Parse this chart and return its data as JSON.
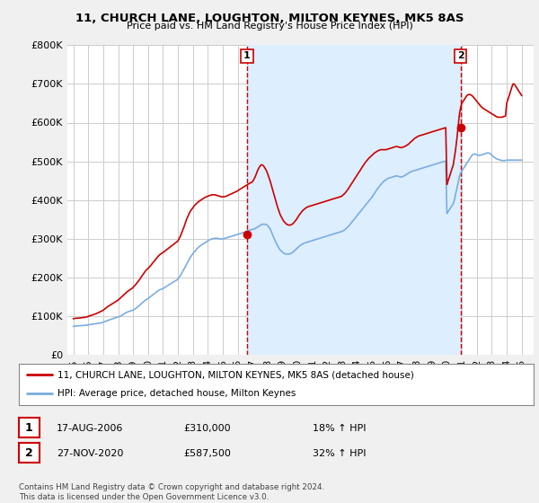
{
  "title": "11, CHURCH LANE, LOUGHTON, MILTON KEYNES, MK5 8AS",
  "subtitle": "Price paid vs. HM Land Registry's House Price Index (HPI)",
  "legend_line1": "11, CHURCH LANE, LOUGHTON, MILTON KEYNES, MK5 8AS (detached house)",
  "legend_line2": "HPI: Average price, detached house, Milton Keynes",
  "sale1_label": "1",
  "sale1_date": "17-AUG-2006",
  "sale1_price": "£310,000",
  "sale1_hpi": "18% ↑ HPI",
  "sale2_label": "2",
  "sale2_date": "27-NOV-2020",
  "sale2_price": "£587,500",
  "sale2_hpi": "32% ↑ HPI",
  "footer": "Contains HM Land Registry data © Crown copyright and database right 2024.\nThis data is licensed under the Open Government Licence v3.0.",
  "property_color": "#cc0000",
  "hpi_color": "#7aade0",
  "shade_color": "#ddeeff",
  "background_color": "#f0f0f0",
  "plot_bg_color": "#ffffff",
  "ylim": [
    0,
    800000
  ],
  "yticks": [
    0,
    100000,
    200000,
    300000,
    400000,
    500000,
    600000,
    700000,
    800000
  ],
  "sale1_year": 2006.62,
  "sale1_value": 310000,
  "sale2_year": 2020.92,
  "sale2_value": 587500,
  "hpi_years": [
    1995.0,
    1995.08,
    1995.17,
    1995.25,
    1995.33,
    1995.42,
    1995.5,
    1995.58,
    1995.67,
    1995.75,
    1995.83,
    1995.92,
    1996.0,
    1996.08,
    1996.17,
    1996.25,
    1996.33,
    1996.42,
    1996.5,
    1996.58,
    1996.67,
    1996.75,
    1996.83,
    1996.92,
    1997.0,
    1997.08,
    1997.17,
    1997.25,
    1997.33,
    1997.42,
    1997.5,
    1997.58,
    1997.67,
    1997.75,
    1997.83,
    1997.92,
    1998.0,
    1998.08,
    1998.17,
    1998.25,
    1998.33,
    1998.42,
    1998.5,
    1998.58,
    1998.67,
    1998.75,
    1998.83,
    1998.92,
    1999.0,
    1999.08,
    1999.17,
    1999.25,
    1999.33,
    1999.42,
    1999.5,
    1999.58,
    1999.67,
    1999.75,
    1999.83,
    1999.92,
    2000.0,
    2000.08,
    2000.17,
    2000.25,
    2000.33,
    2000.42,
    2000.5,
    2000.58,
    2000.67,
    2000.75,
    2000.83,
    2000.92,
    2001.0,
    2001.08,
    2001.17,
    2001.25,
    2001.33,
    2001.42,
    2001.5,
    2001.58,
    2001.67,
    2001.75,
    2001.83,
    2001.92,
    2002.0,
    2002.08,
    2002.17,
    2002.25,
    2002.33,
    2002.42,
    2002.5,
    2002.58,
    2002.67,
    2002.75,
    2002.83,
    2002.92,
    2003.0,
    2003.08,
    2003.17,
    2003.25,
    2003.33,
    2003.42,
    2003.5,
    2003.58,
    2003.67,
    2003.75,
    2003.83,
    2003.92,
    2004.0,
    2004.08,
    2004.17,
    2004.25,
    2004.33,
    2004.42,
    2004.5,
    2004.58,
    2004.67,
    2004.75,
    2004.83,
    2004.92,
    2005.0,
    2005.08,
    2005.17,
    2005.25,
    2005.33,
    2005.42,
    2005.5,
    2005.58,
    2005.67,
    2005.75,
    2005.83,
    2005.92,
    2006.0,
    2006.08,
    2006.17,
    2006.25,
    2006.33,
    2006.42,
    2006.5,
    2006.58,
    2006.67,
    2006.75,
    2006.83,
    2006.92,
    2007.0,
    2007.08,
    2007.17,
    2007.25,
    2007.33,
    2007.42,
    2007.5,
    2007.58,
    2007.67,
    2007.75,
    2007.83,
    2007.92,
    2008.0,
    2008.08,
    2008.17,
    2008.25,
    2008.33,
    2008.42,
    2008.5,
    2008.58,
    2008.67,
    2008.75,
    2008.83,
    2008.92,
    2009.0,
    2009.08,
    2009.17,
    2009.25,
    2009.33,
    2009.42,
    2009.5,
    2009.58,
    2009.67,
    2009.75,
    2009.83,
    2009.92,
    2010.0,
    2010.08,
    2010.17,
    2010.25,
    2010.33,
    2010.42,
    2010.5,
    2010.58,
    2010.67,
    2010.75,
    2010.83,
    2010.92,
    2011.0,
    2011.08,
    2011.17,
    2011.25,
    2011.33,
    2011.42,
    2011.5,
    2011.58,
    2011.67,
    2011.75,
    2011.83,
    2011.92,
    2012.0,
    2012.08,
    2012.17,
    2012.25,
    2012.33,
    2012.42,
    2012.5,
    2012.58,
    2012.67,
    2012.75,
    2012.83,
    2012.92,
    2013.0,
    2013.08,
    2013.17,
    2013.25,
    2013.33,
    2013.42,
    2013.5,
    2013.58,
    2013.67,
    2013.75,
    2013.83,
    2013.92,
    2014.0,
    2014.08,
    2014.17,
    2014.25,
    2014.33,
    2014.42,
    2014.5,
    2014.58,
    2014.67,
    2014.75,
    2014.83,
    2014.92,
    2015.0,
    2015.08,
    2015.17,
    2015.25,
    2015.33,
    2015.42,
    2015.5,
    2015.58,
    2015.67,
    2015.75,
    2015.83,
    2015.92,
    2016.0,
    2016.08,
    2016.17,
    2016.25,
    2016.33,
    2016.42,
    2016.5,
    2016.58,
    2016.67,
    2016.75,
    2016.83,
    2016.92,
    2017.0,
    2017.08,
    2017.17,
    2017.25,
    2017.33,
    2017.42,
    2017.5,
    2017.58,
    2017.67,
    2017.75,
    2017.83,
    2017.92,
    2018.0,
    2018.08,
    2018.17,
    2018.25,
    2018.33,
    2018.42,
    2018.5,
    2018.58,
    2018.67,
    2018.75,
    2018.83,
    2018.92,
    2019.0,
    2019.08,
    2019.17,
    2019.25,
    2019.33,
    2019.42,
    2019.5,
    2019.58,
    2019.67,
    2019.75,
    2019.83,
    2019.92,
    2020.0,
    2020.08,
    2020.17,
    2020.25,
    2020.33,
    2020.42,
    2020.5,
    2020.58,
    2020.67,
    2020.75,
    2020.83,
    2020.92,
    2021.0,
    2021.08,
    2021.17,
    2021.25,
    2021.33,
    2021.42,
    2021.5,
    2021.58,
    2021.67,
    2021.75,
    2021.83,
    2021.92,
    2022.0,
    2022.08,
    2022.17,
    2022.25,
    2022.33,
    2022.42,
    2022.5,
    2022.58,
    2022.67,
    2022.75,
    2022.83,
    2022.92,
    2023.0,
    2023.08,
    2023.17,
    2023.25,
    2023.33,
    2023.42,
    2023.5,
    2023.58,
    2023.67,
    2023.75,
    2023.83,
    2023.92,
    2024.0,
    2024.08,
    2024.17,
    2024.25,
    2024.33,
    2024.42,
    2024.5,
    2024.58,
    2024.67,
    2024.75,
    2024.83,
    2024.92,
    2025.0
  ],
  "hpi_values": [
    73000,
    73500,
    74000,
    74200,
    74500,
    74800,
    75000,
    75300,
    75600,
    75800,
    76000,
    76200,
    77000,
    77500,
    78000,
    78500,
    79000,
    79500,
    80000,
    80500,
    81000,
    81500,
    82000,
    82500,
    84000,
    85000,
    86200,
    87500,
    88800,
    90000,
    91000,
    92000,
    93000,
    94000,
    95000,
    96000,
    97000,
    98500,
    100000,
    102000,
    104000,
    106000,
    108000,
    109500,
    111000,
    112000,
    113000,
    114000,
    115000,
    117000,
    119000,
    121500,
    124000,
    127000,
    130000,
    133000,
    136000,
    139000,
    141000,
    143000,
    145000,
    147500,
    150000,
    152500,
    155000,
    157500,
    160000,
    162500,
    165000,
    167000,
    168500,
    169500,
    171000,
    173000,
    175000,
    177000,
    179000,
    181000,
    183000,
    185000,
    187000,
    189000,
    191000,
    193000,
    196000,
    200000,
    205000,
    210000,
    216000,
    222000,
    228000,
    234000,
    240000,
    246000,
    252000,
    257000,
    261000,
    265000,
    269000,
    273000,
    276000,
    279000,
    282000,
    284000,
    286000,
    288000,
    290000,
    292000,
    294000,
    296000,
    298000,
    299000,
    300000,
    300500,
    301000,
    301000,
    300500,
    300000,
    299500,
    299000,
    299500,
    300000,
    301000,
    302000,
    303000,
    304000,
    305000,
    306000,
    307000,
    308000,
    309000,
    310000,
    311000,
    312000,
    313000,
    314000,
    315000,
    316000,
    317000,
    318000,
    320000,
    321000,
    322000,
    323000,
    324000,
    325000,
    326000,
    328000,
    330000,
    332000,
    334000,
    336000,
    337000,
    337500,
    337000,
    336000,
    334000,
    330000,
    325000,
    318000,
    310000,
    302000,
    295000,
    288000,
    282000,
    276000,
    271000,
    268000,
    265000,
    262000,
    261000,
    260000,
    260000,
    260000,
    261000,
    262000,
    264000,
    267000,
    270000,
    273000,
    276000,
    279000,
    282000,
    284000,
    286000,
    288000,
    289000,
    290000,
    291000,
    292000,
    293000,
    294000,
    295000,
    296000,
    297000,
    298000,
    299000,
    300000,
    301000,
    302000,
    303000,
    304000,
    305000,
    306000,
    307000,
    308000,
    309000,
    310000,
    311000,
    312000,
    313000,
    314000,
    315000,
    316000,
    317000,
    318000,
    319000,
    321000,
    323000,
    326000,
    329000,
    332000,
    336000,
    340000,
    344000,
    348000,
    352000,
    356000,
    360000,
    364000,
    368000,
    372000,
    376000,
    380000,
    384000,
    388000,
    392000,
    396000,
    400000,
    404000,
    408000,
    413000,
    418000,
    423000,
    428000,
    432000,
    436000,
    440000,
    444000,
    447000,
    450000,
    452000,
    454000,
    456000,
    457000,
    458000,
    459000,
    460000,
    461000,
    462000,
    462000,
    461000,
    460000,
    459000,
    460000,
    461000,
    463000,
    465000,
    467000,
    469000,
    471000,
    473000,
    474000,
    475000,
    476000,
    477000,
    478000,
    479000,
    480000,
    481000,
    482000,
    483000,
    484000,
    485000,
    486000,
    487000,
    488000,
    489000,
    490000,
    491000,
    492000,
    493000,
    494000,
    495000,
    496000,
    497000,
    498000,
    499000,
    500000,
    500500,
    365000,
    370000,
    375000,
    380000,
    385000,
    390000,
    400000,
    415000,
    430000,
    445000,
    460000,
    470000,
    475000,
    480000,
    485000,
    490000,
    495000,
    500000,
    505000,
    510000,
    515000,
    518000,
    519000,
    518000,
    517000,
    516000,
    515000,
    516000,
    517000,
    518000,
    519000,
    520000,
    521000,
    522000,
    521000,
    519000,
    516000,
    513000,
    510000,
    508000,
    506000,
    505000,
    504000,
    503000,
    502000,
    502000,
    502000,
    502000,
    503000,
    503000,
    503000,
    503000,
    503000,
    503000,
    503000,
    503000,
    503000,
    503000,
    503000,
    503000,
    503000
  ],
  "prop_years": [
    1995.0,
    1995.08,
    1995.17,
    1995.25,
    1995.33,
    1995.42,
    1995.5,
    1995.58,
    1995.67,
    1995.75,
    1995.83,
    1995.92,
    1996.0,
    1996.08,
    1996.17,
    1996.25,
    1996.33,
    1996.42,
    1996.5,
    1996.58,
    1996.67,
    1996.75,
    1996.83,
    1996.92,
    1997.0,
    1997.08,
    1997.17,
    1997.25,
    1997.33,
    1997.42,
    1997.5,
    1997.58,
    1997.67,
    1997.75,
    1997.83,
    1997.92,
    1998.0,
    1998.08,
    1998.17,
    1998.25,
    1998.33,
    1998.42,
    1998.5,
    1998.58,
    1998.67,
    1998.75,
    1998.83,
    1998.92,
    1999.0,
    1999.08,
    1999.17,
    1999.25,
    1999.33,
    1999.42,
    1999.5,
    1999.58,
    1999.67,
    1999.75,
    1999.83,
    1999.92,
    2000.0,
    2000.08,
    2000.17,
    2000.25,
    2000.33,
    2000.42,
    2000.5,
    2000.58,
    2000.67,
    2000.75,
    2000.83,
    2000.92,
    2001.0,
    2001.08,
    2001.17,
    2001.25,
    2001.33,
    2001.42,
    2001.5,
    2001.58,
    2001.67,
    2001.75,
    2001.83,
    2001.92,
    2002.0,
    2002.08,
    2002.17,
    2002.25,
    2002.33,
    2002.42,
    2002.5,
    2002.58,
    2002.67,
    2002.75,
    2002.83,
    2002.92,
    2003.0,
    2003.08,
    2003.17,
    2003.25,
    2003.33,
    2003.42,
    2003.5,
    2003.58,
    2003.67,
    2003.75,
    2003.83,
    2003.92,
    2004.0,
    2004.08,
    2004.17,
    2004.25,
    2004.33,
    2004.42,
    2004.5,
    2004.58,
    2004.67,
    2004.75,
    2004.83,
    2004.92,
    2005.0,
    2005.08,
    2005.17,
    2005.25,
    2005.33,
    2005.42,
    2005.5,
    2005.58,
    2005.67,
    2005.75,
    2005.83,
    2005.92,
    2006.0,
    2006.08,
    2006.17,
    2006.25,
    2006.33,
    2006.42,
    2006.5,
    2006.58,
    2006.67,
    2006.75,
    2006.83,
    2006.92,
    2007.0,
    2007.08,
    2007.17,
    2007.25,
    2007.33,
    2007.42,
    2007.5,
    2007.58,
    2007.67,
    2007.75,
    2007.83,
    2007.92,
    2008.0,
    2008.08,
    2008.17,
    2008.25,
    2008.33,
    2008.42,
    2008.5,
    2008.58,
    2008.67,
    2008.75,
    2008.83,
    2008.92,
    2009.0,
    2009.08,
    2009.17,
    2009.25,
    2009.33,
    2009.42,
    2009.5,
    2009.58,
    2009.67,
    2009.75,
    2009.83,
    2009.92,
    2010.0,
    2010.08,
    2010.17,
    2010.25,
    2010.33,
    2010.42,
    2010.5,
    2010.58,
    2010.67,
    2010.75,
    2010.83,
    2010.92,
    2011.0,
    2011.08,
    2011.17,
    2011.25,
    2011.33,
    2011.42,
    2011.5,
    2011.58,
    2011.67,
    2011.75,
    2011.83,
    2011.92,
    2012.0,
    2012.08,
    2012.17,
    2012.25,
    2012.33,
    2012.42,
    2012.5,
    2012.58,
    2012.67,
    2012.75,
    2012.83,
    2012.92,
    2013.0,
    2013.08,
    2013.17,
    2013.25,
    2013.33,
    2013.42,
    2013.5,
    2013.58,
    2013.67,
    2013.75,
    2013.83,
    2013.92,
    2014.0,
    2014.08,
    2014.17,
    2014.25,
    2014.33,
    2014.42,
    2014.5,
    2014.58,
    2014.67,
    2014.75,
    2014.83,
    2014.92,
    2015.0,
    2015.08,
    2015.17,
    2015.25,
    2015.33,
    2015.42,
    2015.5,
    2015.58,
    2015.67,
    2015.75,
    2015.83,
    2015.92,
    2016.0,
    2016.08,
    2016.17,
    2016.25,
    2016.33,
    2016.42,
    2016.5,
    2016.58,
    2016.67,
    2016.75,
    2016.83,
    2016.92,
    2017.0,
    2017.08,
    2017.17,
    2017.25,
    2017.33,
    2017.42,
    2017.5,
    2017.58,
    2017.67,
    2017.75,
    2017.83,
    2017.92,
    2018.0,
    2018.08,
    2018.17,
    2018.25,
    2018.33,
    2018.42,
    2018.5,
    2018.58,
    2018.67,
    2018.75,
    2018.83,
    2018.92,
    2019.0,
    2019.08,
    2019.17,
    2019.25,
    2019.33,
    2019.42,
    2019.5,
    2019.58,
    2019.67,
    2019.75,
    2019.83,
    2019.92,
    2020.0,
    2020.08,
    2020.17,
    2020.25,
    2020.33,
    2020.42,
    2020.5,
    2020.58,
    2020.67,
    2020.75,
    2020.83,
    2020.92,
    2021.0,
    2021.08,
    2021.17,
    2021.25,
    2021.33,
    2021.42,
    2021.5,
    2021.58,
    2021.67,
    2021.75,
    2021.83,
    2021.92,
    2022.0,
    2022.08,
    2022.17,
    2022.25,
    2022.33,
    2022.42,
    2022.5,
    2022.58,
    2022.67,
    2022.75,
    2022.83,
    2022.92,
    2023.0,
    2023.08,
    2023.17,
    2023.25,
    2023.33,
    2023.42,
    2023.5,
    2023.58,
    2023.67,
    2023.75,
    2023.83,
    2023.92,
    2024.0,
    2024.08,
    2024.17,
    2024.25,
    2024.33,
    2024.42,
    2024.5,
    2024.58,
    2024.67,
    2024.75,
    2024.83,
    2024.92,
    2025.0
  ],
  "prop_values": [
    93000,
    93500,
    94000,
    94200,
    94500,
    94800,
    95000,
    95500,
    96000,
    96500,
    97000,
    97500,
    99000,
    100000,
    101000,
    102000,
    103000,
    104000,
    105500,
    107000,
    108500,
    110000,
    111500,
    113000,
    115000,
    117500,
    120000,
    122500,
    125000,
    127000,
    129000,
    131000,
    133000,
    135000,
    137000,
    139000,
    141000,
    144000,
    147000,
    150000,
    153000,
    156000,
    159000,
    162000,
    164500,
    167000,
    169000,
    171000,
    174000,
    177500,
    181000,
    185000,
    189000,
    193500,
    198000,
    203000,
    208000,
    212500,
    216500,
    220000,
    223000,
    226500,
    230000,
    234000,
    238000,
    242000,
    246000,
    250000,
    254000,
    257000,
    260000,
    262000,
    264000,
    266500,
    269000,
    271500,
    274000,
    276500,
    279000,
    281500,
    284000,
    286500,
    289000,
    291500,
    294000,
    300000,
    307000,
    315000,
    323000,
    332000,
    341000,
    350000,
    358000,
    365000,
    371000,
    376000,
    380000,
    384000,
    388000,
    391000,
    394000,
    396500,
    399000,
    401000,
    403000,
    405000,
    407000,
    408500,
    410000,
    411000,
    412000,
    413000,
    413500,
    413500,
    413000,
    412000,
    411000,
    410000,
    409000,
    408000,
    408000,
    408500,
    409000,
    410000,
    411500,
    413000,
    414500,
    416000,
    417500,
    419000,
    420500,
    422000,
    424000,
    426000,
    428000,
    430000,
    432000,
    434000,
    436000,
    438000,
    440000,
    442000,
    444000,
    445000,
    448000,
    453000,
    460000,
    468000,
    476000,
    483000,
    488000,
    491000,
    490000,
    487000,
    482000,
    476000,
    468000,
    459000,
    449000,
    438000,
    427000,
    415000,
    403000,
    392000,
    381000,
    372000,
    363000,
    356000,
    350000,
    345000,
    341000,
    338000,
    336000,
    335000,
    335000,
    336000,
    338000,
    341000,
    345000,
    349000,
    354000,
    359000,
    364000,
    368000,
    372000,
    375000,
    378000,
    380000,
    382000,
    383000,
    384000,
    385000,
    386000,
    387000,
    388000,
    389000,
    390000,
    391000,
    392000,
    393000,
    394000,
    395000,
    396000,
    397000,
    398000,
    399000,
    400000,
    401000,
    402000,
    403000,
    404000,
    405000,
    406000,
    407000,
    408000,
    409000,
    411000,
    414000,
    417000,
    421000,
    425000,
    430000,
    435000,
    440000,
    445000,
    450000,
    455000,
    460000,
    465000,
    470000,
    475000,
    480000,
    485000,
    490000,
    495000,
    499000,
    503000,
    507000,
    510000,
    513000,
    516000,
    519000,
    522000,
    524000,
    526000,
    528000,
    529000,
    530000,
    530000,
    530000,
    530000,
    530000,
    531000,
    532000,
    533000,
    534000,
    535000,
    536000,
    537000,
    538000,
    538000,
    537000,
    536000,
    535000,
    536000,
    537000,
    538000,
    540000,
    542000,
    544000,
    547000,
    550000,
    553000,
    556000,
    559000,
    561000,
    563000,
    565000,
    566000,
    567000,
    568000,
    569000,
    570000,
    571000,
    572000,
    573000,
    574000,
    575000,
    576000,
    577000,
    578000,
    579000,
    580000,
    581000,
    582000,
    583000,
    584000,
    585000,
    586000,
    587000,
    440000,
    450000,
    460000,
    470000,
    480000,
    490000,
    510000,
    530000,
    560000,
    590000,
    620000,
    640000,
    650000,
    655000,
    660000,
    665000,
    670000,
    672000,
    673000,
    672000,
    670000,
    667000,
    663000,
    659000,
    655000,
    651000,
    647000,
    643000,
    640000,
    637000,
    635000,
    633000,
    631000,
    629000,
    627000,
    625000,
    623000,
    621000,
    619000,
    617000,
    615000,
    614000,
    614000,
    614000,
    614000,
    615000,
    616000,
    617000,
    650000,
    660000,
    670000,
    680000,
    690000,
    700000,
    700000,
    695000,
    690000,
    685000,
    680000,
    675000,
    670000
  ]
}
